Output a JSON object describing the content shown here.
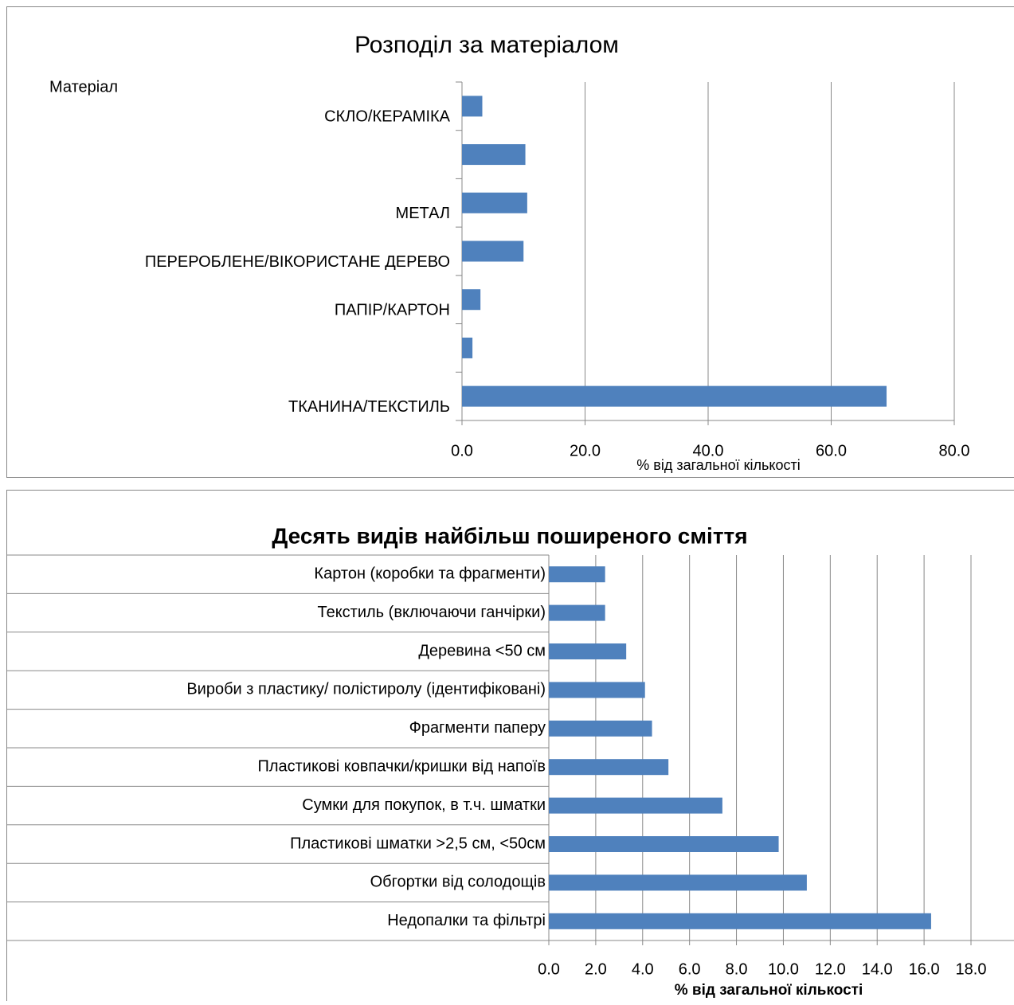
{
  "chart_data": [
    {
      "type": "bar",
      "title": "Розподіл за матеріалом",
      "y_label": "Матеріал",
      "x_label": "% від загальної кількості",
      "categories": [
        "СКЛО/КЕРАМІКА",
        null,
        "МЕТАЛ",
        "ПЕРЕРОБЛЕНЕ/ВІКОРИСТАНЕ ДЕРЕВО",
        "ПАПІР/КАРТОН",
        null,
        "ТКАНИНА/ТЕКСТИЛЬ"
      ],
      "values": [
        3.3,
        10.3,
        10.6,
        10.0,
        3.0,
        1.7,
        69.0
      ],
      "color": "#4f81bd",
      "xlim": [
        0,
        80
      ],
      "xticks": [
        {
          "value": 0,
          "label": "0.0"
        },
        {
          "value": 20,
          "label": "20.0"
        },
        {
          "value": 40,
          "label": "40.0"
        },
        {
          "value": 60,
          "label": "60.0"
        },
        {
          "value": 80,
          "label": "80.0"
        }
      ],
      "grid": true
    },
    {
      "type": "bar",
      "title": "Десять видів найбільш поширеного сміття",
      "x_label": "% від загальної кількості",
      "categories": [
        "Картон (коробки та фрагменти)",
        "Текстиль (включаючи ганчірки)",
        "Деревина <50 см",
        "Вироби з пластику/ полістиролу (ідентифіковані)",
        "Фрагменти паперу",
        "Пластикові ковпачки/кришки від напоїв",
        "Сумки для покупок, в т.ч. шматки",
        "Пластикові шматки >2,5 см, <50см",
        "Обгортки від солодощів",
        "Недопалки та фільтрі"
      ],
      "values": [
        2.4,
        2.4,
        3.3,
        4.1,
        4.4,
        5.1,
        7.4,
        9.8,
        11.0,
        16.3
      ],
      "color": "#4f81bd",
      "xlim": [
        0,
        18
      ],
      "xticks": [
        {
          "value": 0,
          "label": "0.0"
        },
        {
          "value": 2,
          "label": "2.0"
        },
        {
          "value": 4,
          "label": "4.0"
        },
        {
          "value": 6,
          "label": "6.0"
        },
        {
          "value": 8,
          "label": "8.0"
        },
        {
          "value": 10,
          "label": "10.0"
        },
        {
          "value": 12,
          "label": "12.0"
        },
        {
          "value": 14,
          "label": "14.0"
        },
        {
          "value": 16,
          "label": "16.0"
        },
        {
          "value": 18,
          "label": "18.0"
        }
      ],
      "grid": true
    }
  ]
}
